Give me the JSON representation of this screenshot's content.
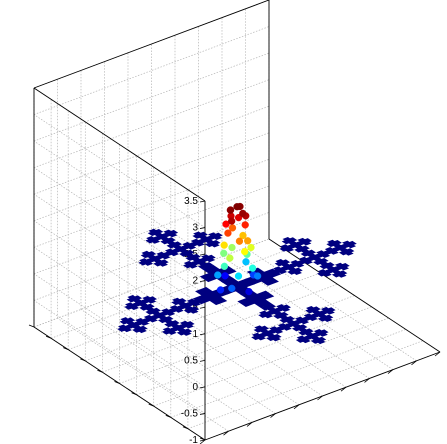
{
  "chart_data": {
    "type": "scatter",
    "title": "",
    "xlabel": "",
    "ylabel": "",
    "zlabel": "",
    "projection": "3d",
    "grid": true,
    "zlim": [
      -1,
      3.5
    ],
    "z_ticks": [
      "-1",
      "-0.5",
      "0",
      "0.5",
      "1",
      "1.5",
      "2",
      "2.5",
      "3",
      "3.5"
    ],
    "base_color": "#000080",
    "fractal": {
      "description_level": 3,
      "z": 0,
      "clusters": [
        {
          "name": "left",
          "cx": -3.3,
          "cy": 0.0
        },
        {
          "name": "back",
          "cx": 0.0,
          "cy": 3.3
        },
        {
          "name": "right",
          "cx": 3.3,
          "cy": 0.0
        },
        {
          "name": "front",
          "cx": 0.0,
          "cy": -3.3
        }
      ]
    },
    "center_points": [
      {
        "x": 0.0,
        "y": 0.0,
        "z": 1.5,
        "c": "#7f0000"
      },
      {
        "x": 0.2,
        "y": 0.1,
        "z": 1.45,
        "c": "#8b0000"
      },
      {
        "x": -0.2,
        "y": 0.1,
        "z": 1.45,
        "c": "#8b0000"
      },
      {
        "x": 0.1,
        "y": -0.2,
        "z": 1.4,
        "c": "#990000"
      },
      {
        "x": -0.1,
        "y": 0.25,
        "z": 1.4,
        "c": "#990000"
      },
      {
        "x": 0.3,
        "y": -0.1,
        "z": 1.3,
        "c": "#b00000"
      },
      {
        "x": -0.3,
        "y": -0.1,
        "z": 1.3,
        "c": "#b00000"
      },
      {
        "x": 0.0,
        "y": 0.35,
        "z": 1.25,
        "c": "#cc0000"
      },
      {
        "x": 0.25,
        "y": 0.25,
        "z": 1.2,
        "c": "#e00000"
      },
      {
        "x": -0.25,
        "y": 0.3,
        "z": 1.15,
        "c": "#ff0000"
      },
      {
        "x": 0.35,
        "y": 0.0,
        "z": 1.1,
        "c": "#ff2000"
      },
      {
        "x": -0.35,
        "y": 0.05,
        "z": 1.05,
        "c": "#ff4000"
      },
      {
        "x": 0.1,
        "y": 0.4,
        "z": 1.0,
        "c": "#ff6000"
      },
      {
        "x": -0.15,
        "y": -0.35,
        "z": 0.95,
        "c": "#ff8000"
      },
      {
        "x": 0.2,
        "y": -0.35,
        "z": 0.9,
        "c": "#ffa000"
      },
      {
        "x": 0.4,
        "y": 0.2,
        "z": 0.85,
        "c": "#ffc000"
      },
      {
        "x": -0.4,
        "y": 0.2,
        "z": 0.8,
        "c": "#ffe000"
      },
      {
        "x": 0.0,
        "y": -0.45,
        "z": 0.75,
        "c": "#ffff00"
      },
      {
        "x": 0.45,
        "y": -0.2,
        "z": 0.7,
        "c": "#e0ff20"
      },
      {
        "x": -0.45,
        "y": -0.2,
        "z": 0.65,
        "c": "#c0ff40"
      },
      {
        "x": 0.15,
        "y": 0.5,
        "z": 0.6,
        "c": "#a0ff60"
      },
      {
        "x": -0.2,
        "y": 0.5,
        "z": 0.55,
        "c": "#80ff80"
      },
      {
        "x": 0.5,
        "y": 0.1,
        "z": 0.5,
        "c": "#60ffa0"
      },
      {
        "x": -0.5,
        "y": 0.05,
        "z": 0.45,
        "c": "#40ffc0"
      },
      {
        "x": 0.3,
        "y": -0.5,
        "z": 0.4,
        "c": "#20ffe0"
      },
      {
        "x": -0.3,
        "y": -0.5,
        "z": 0.35,
        "c": "#00e0ff"
      },
      {
        "x": 0.6,
        "y": 0.3,
        "z": 0.3,
        "c": "#00c0ff"
      },
      {
        "x": -0.6,
        "y": 0.3,
        "z": 0.25,
        "c": "#00a0ff"
      },
      {
        "x": 0.55,
        "y": -0.45,
        "z": 0.2,
        "c": "#0080ff"
      },
      {
        "x": -0.55,
        "y": -0.45,
        "z": 0.15,
        "c": "#0060ff"
      },
      {
        "x": 0.7,
        "y": 0.0,
        "z": 0.1,
        "c": "#0040ff"
      },
      {
        "x": -0.7,
        "y": 0.0,
        "z": 0.05,
        "c": "#0020ff"
      },
      {
        "x": 0.0,
        "y": 0.7,
        "z": 0.05,
        "c": "#0000ff"
      },
      {
        "x": 0.0,
        "y": -0.7,
        "z": 0.05,
        "c": "#0000e0"
      }
    ]
  }
}
